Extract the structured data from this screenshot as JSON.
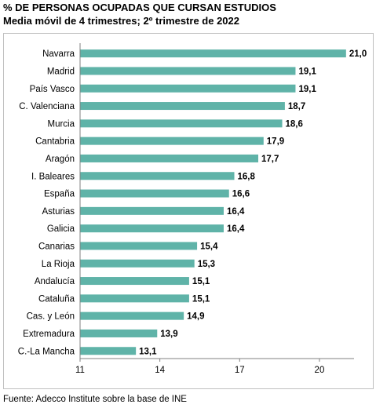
{
  "title": "% DE PERSONAS OCUPADAS QUE CURSAN ESTUDIOS",
  "subtitle": "Media móvil de 4 trimestres; 2º trimestre de 2022",
  "source": "Fuente: Adecco Institute sobre la base de INE",
  "colors": {
    "bar": "#5fb3a8",
    "axis": "#808080",
    "frame": "#bfbfbf"
  },
  "chart_data": {
    "type": "bar",
    "orientation": "horizontal",
    "categories": [
      "Navarra",
      "Madrid",
      "País Vasco",
      "C. Valenciana",
      "Murcia",
      "Cantabria",
      "Aragón",
      "I. Baleares",
      "España",
      "Asturias",
      "Galicia",
      "Canarias",
      "La Rioja",
      "Andalucía",
      "Cataluña",
      "Cas. y León",
      "Extremadura",
      "C.-La Mancha"
    ],
    "values": [
      21.0,
      19.1,
      19.1,
      18.7,
      18.6,
      17.9,
      17.7,
      16.8,
      16.6,
      16.4,
      16.4,
      15.4,
      15.3,
      15.1,
      15.1,
      14.9,
      13.9,
      13.1
    ],
    "value_labels": [
      "21,0",
      "19,1",
      "19,1",
      "18,7",
      "18,6",
      "17,9",
      "17,7",
      "16,8",
      "16,6",
      "16,4",
      "16,4",
      "15,4",
      "15,3",
      "15,1",
      "15,1",
      "14,9",
      "13,9",
      "13,1"
    ],
    "xlim": [
      11,
      21.3
    ],
    "xticks": [
      11,
      14,
      17,
      20
    ],
    "xtick_labels": [
      "11",
      "14",
      "17",
      "20"
    ],
    "grid": false,
    "legend": "none"
  }
}
